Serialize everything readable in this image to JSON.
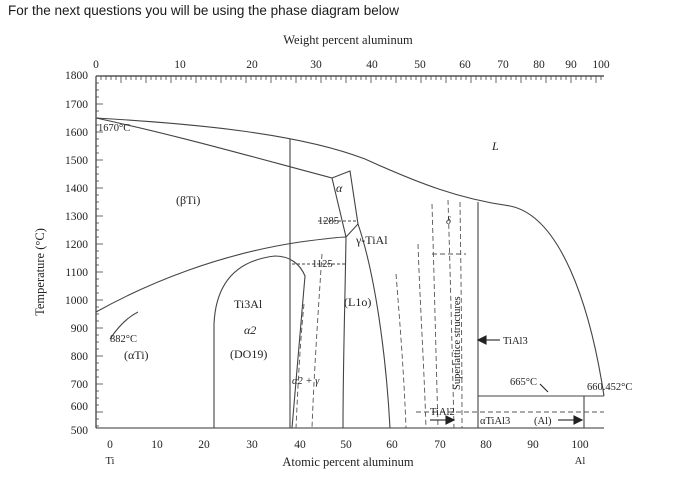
{
  "caption": "For the next questions you will be using the phase diagram below",
  "diagram": {
    "top_axis_title": "Weight percent aluminum",
    "bottom_axis_title": "Atomic percent aluminum",
    "left_axis_title": "Temperature (°C)",
    "y_ticks": [
      "1800",
      "1700",
      "1600",
      "1500",
      "1400",
      "1300",
      "1200",
      "1100",
      "1000",
      "900",
      "800",
      "700",
      "600",
      "500"
    ],
    "bottom_ticks": [
      "0",
      "10",
      "20",
      "30",
      "40",
      "50",
      "60",
      "70",
      "80",
      "90",
      "100"
    ],
    "bottom_end_labels": {
      "left": "Ti",
      "right": "Al"
    },
    "top_ticks": [
      "0",
      "10",
      "20",
      "30",
      "40",
      "50",
      "60",
      "70",
      "80",
      "90",
      "100"
    ],
    "temperatures": {
      "ti_melting": "1670°C",
      "alpha_beta": "882°C",
      "peritectic": "1285",
      "eutectoid": "1125",
      "peritectic_tial3": "665°C",
      "al_melting": "660.452°C"
    },
    "regions": {
      "liquid": "L",
      "beta_ti": "(βTi)",
      "alpha_ti": "(αTi)",
      "alpha": "α",
      "ti3al": "Ti3Al",
      "alpha2": "α2",
      "do19": "(DO19)",
      "alpha2_gamma": "α2 + γ",
      "gamma_tial": "γ-TiAl",
      "l1o": "(L1o)",
      "delta": "δ",
      "superlattice": "Superlattice structures",
      "tial3": "TiAl3",
      "tial2": "TiAl2",
      "alpha_tial3": "αTiAl3",
      "al": "(Al)"
    }
  }
}
